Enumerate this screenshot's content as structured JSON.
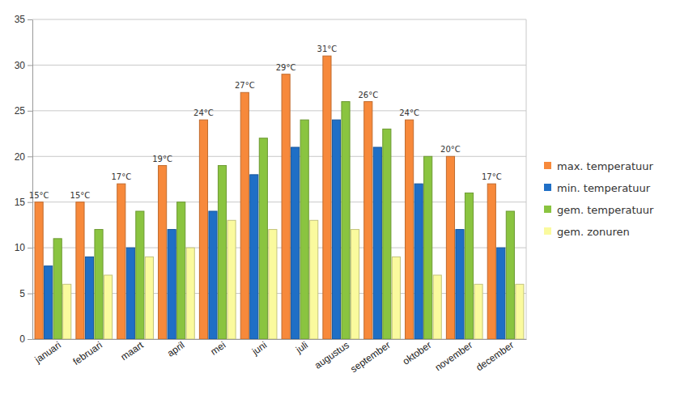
{
  "chart_data": {
    "type": "bar",
    "categories": [
      "januari",
      "februari",
      "maart",
      "april",
      "mei",
      "juni",
      "juli",
      "augustus",
      "september",
      "oktober",
      "november",
      "december"
    ],
    "series": [
      {
        "name": "max. temperatuur",
        "color": "#f7893b",
        "values": [
          15,
          15,
          17,
          19,
          24,
          27,
          29,
          31,
          26,
          24,
          20,
          17
        ],
        "data_labels": true,
        "value_labels": [
          "15°C",
          "15°C",
          "17°C",
          "19°C",
          "24°C",
          "27°C",
          "29°C",
          "31°C",
          "26°C",
          "24°C",
          "20°C",
          "17°C"
        ]
      },
      {
        "name": "min. temperatuur",
        "color": "#1f6fc6",
        "values": [
          8,
          9,
          10,
          12,
          14,
          18,
          21,
          24,
          21,
          17,
          12,
          10
        ]
      },
      {
        "name": "gem. temperatuur",
        "color": "#8ac440",
        "values": [
          11,
          12,
          14,
          15,
          19,
          22,
          24,
          26,
          23,
          20,
          16,
          14
        ]
      },
      {
        "name": "gem. zonuren",
        "color": "#fafa9e",
        "values": [
          6,
          7,
          9,
          10,
          13,
          12,
          13,
          12,
          9,
          7,
          6,
          6
        ]
      }
    ],
    "ylim": [
      0,
      35
    ],
    "yticks": [
      0,
      5,
      10,
      15,
      20,
      25,
      30,
      35
    ],
    "grid": true,
    "legend": "right"
  }
}
